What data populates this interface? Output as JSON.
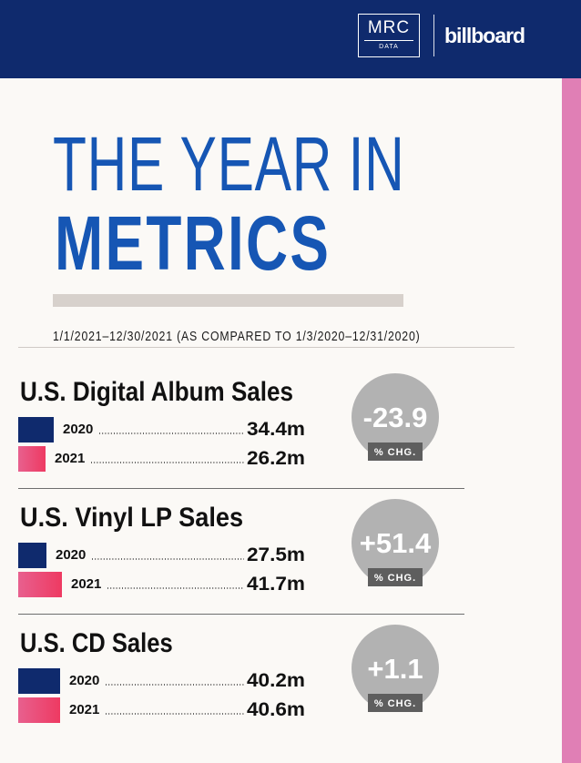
{
  "header": {
    "mrc_logo_name": "MRC",
    "mrc_logo_sub": "DATA",
    "billboard_logo": "billboard",
    "background": "#0f2a6d"
  },
  "title": {
    "line1": "THE YEAR IN",
    "line2": "METRICS",
    "color": "#1656b4"
  },
  "date_range": "1/1/2021–12/30/2021 (AS COMPARED TO 1/3/2020–12/31/2020)",
  "colors": {
    "bar_2020": "#0f2a6d",
    "bar_2021_light": "#e8608e",
    "bar_2021_deep": "#ee3a62",
    "badge": "#b2b2b2",
    "badge_label": "#5e5e5e",
    "stripe": "#e07fb5"
  },
  "chart_data": {
    "type": "bar",
    "unit": "m",
    "series_names": [
      "2020",
      "2021"
    ],
    "metrics": [
      {
        "title": "U.S. Digital Album Sales",
        "rows": [
          {
            "year": "2020",
            "value": 34.4,
            "label": "34.4m"
          },
          {
            "year": "2021",
            "value": 26.2,
            "label": "26.2m"
          }
        ],
        "change": "-23.9",
        "change_label": "% CHG."
      },
      {
        "title": "U.S. Vinyl LP Sales",
        "rows": [
          {
            "year": "2020",
            "value": 27.5,
            "label": "27.5m"
          },
          {
            "year": "2021",
            "value": 41.7,
            "label": "41.7m"
          }
        ],
        "change": "+51.4",
        "change_label": "% CHG."
      },
      {
        "title": "U.S. CD Sales",
        "rows": [
          {
            "year": "2020",
            "value": 40.2,
            "label": "40.2m"
          },
          {
            "year": "2021",
            "value": 40.6,
            "label": "40.6m"
          }
        ],
        "change": "+1.1",
        "change_label": "% CHG."
      }
    ]
  }
}
